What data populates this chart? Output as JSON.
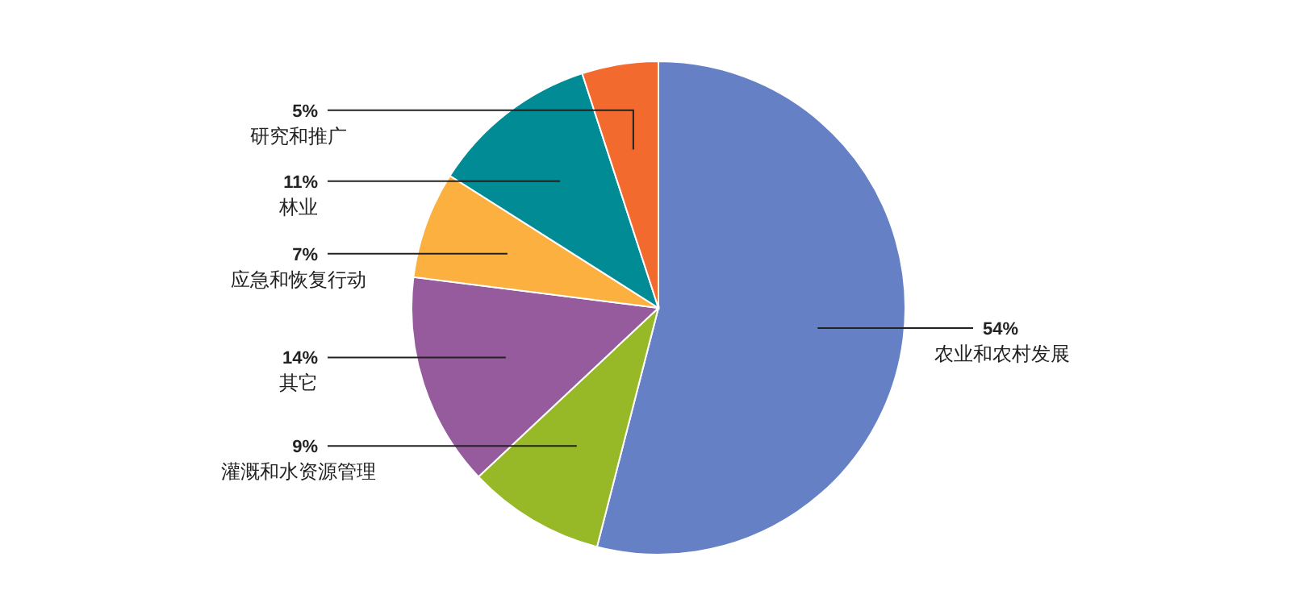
{
  "chart_data": {
    "type": "pie",
    "categories": [
      "农业和农村发展",
      "灌溉和水资源管理",
      "其它",
      "应急和恢复行动",
      "林业",
      "研究和推广"
    ],
    "values": [
      54,
      9,
      14,
      7,
      11,
      5
    ],
    "value_labels": [
      "54%",
      "9%",
      "14%",
      "7%",
      "11%",
      "5%"
    ],
    "colors": [
      "#6580c4",
      "#97b928",
      "#955b9d",
      "#fbb040",
      "#008b95",
      "#f26a2e"
    ]
  }
}
